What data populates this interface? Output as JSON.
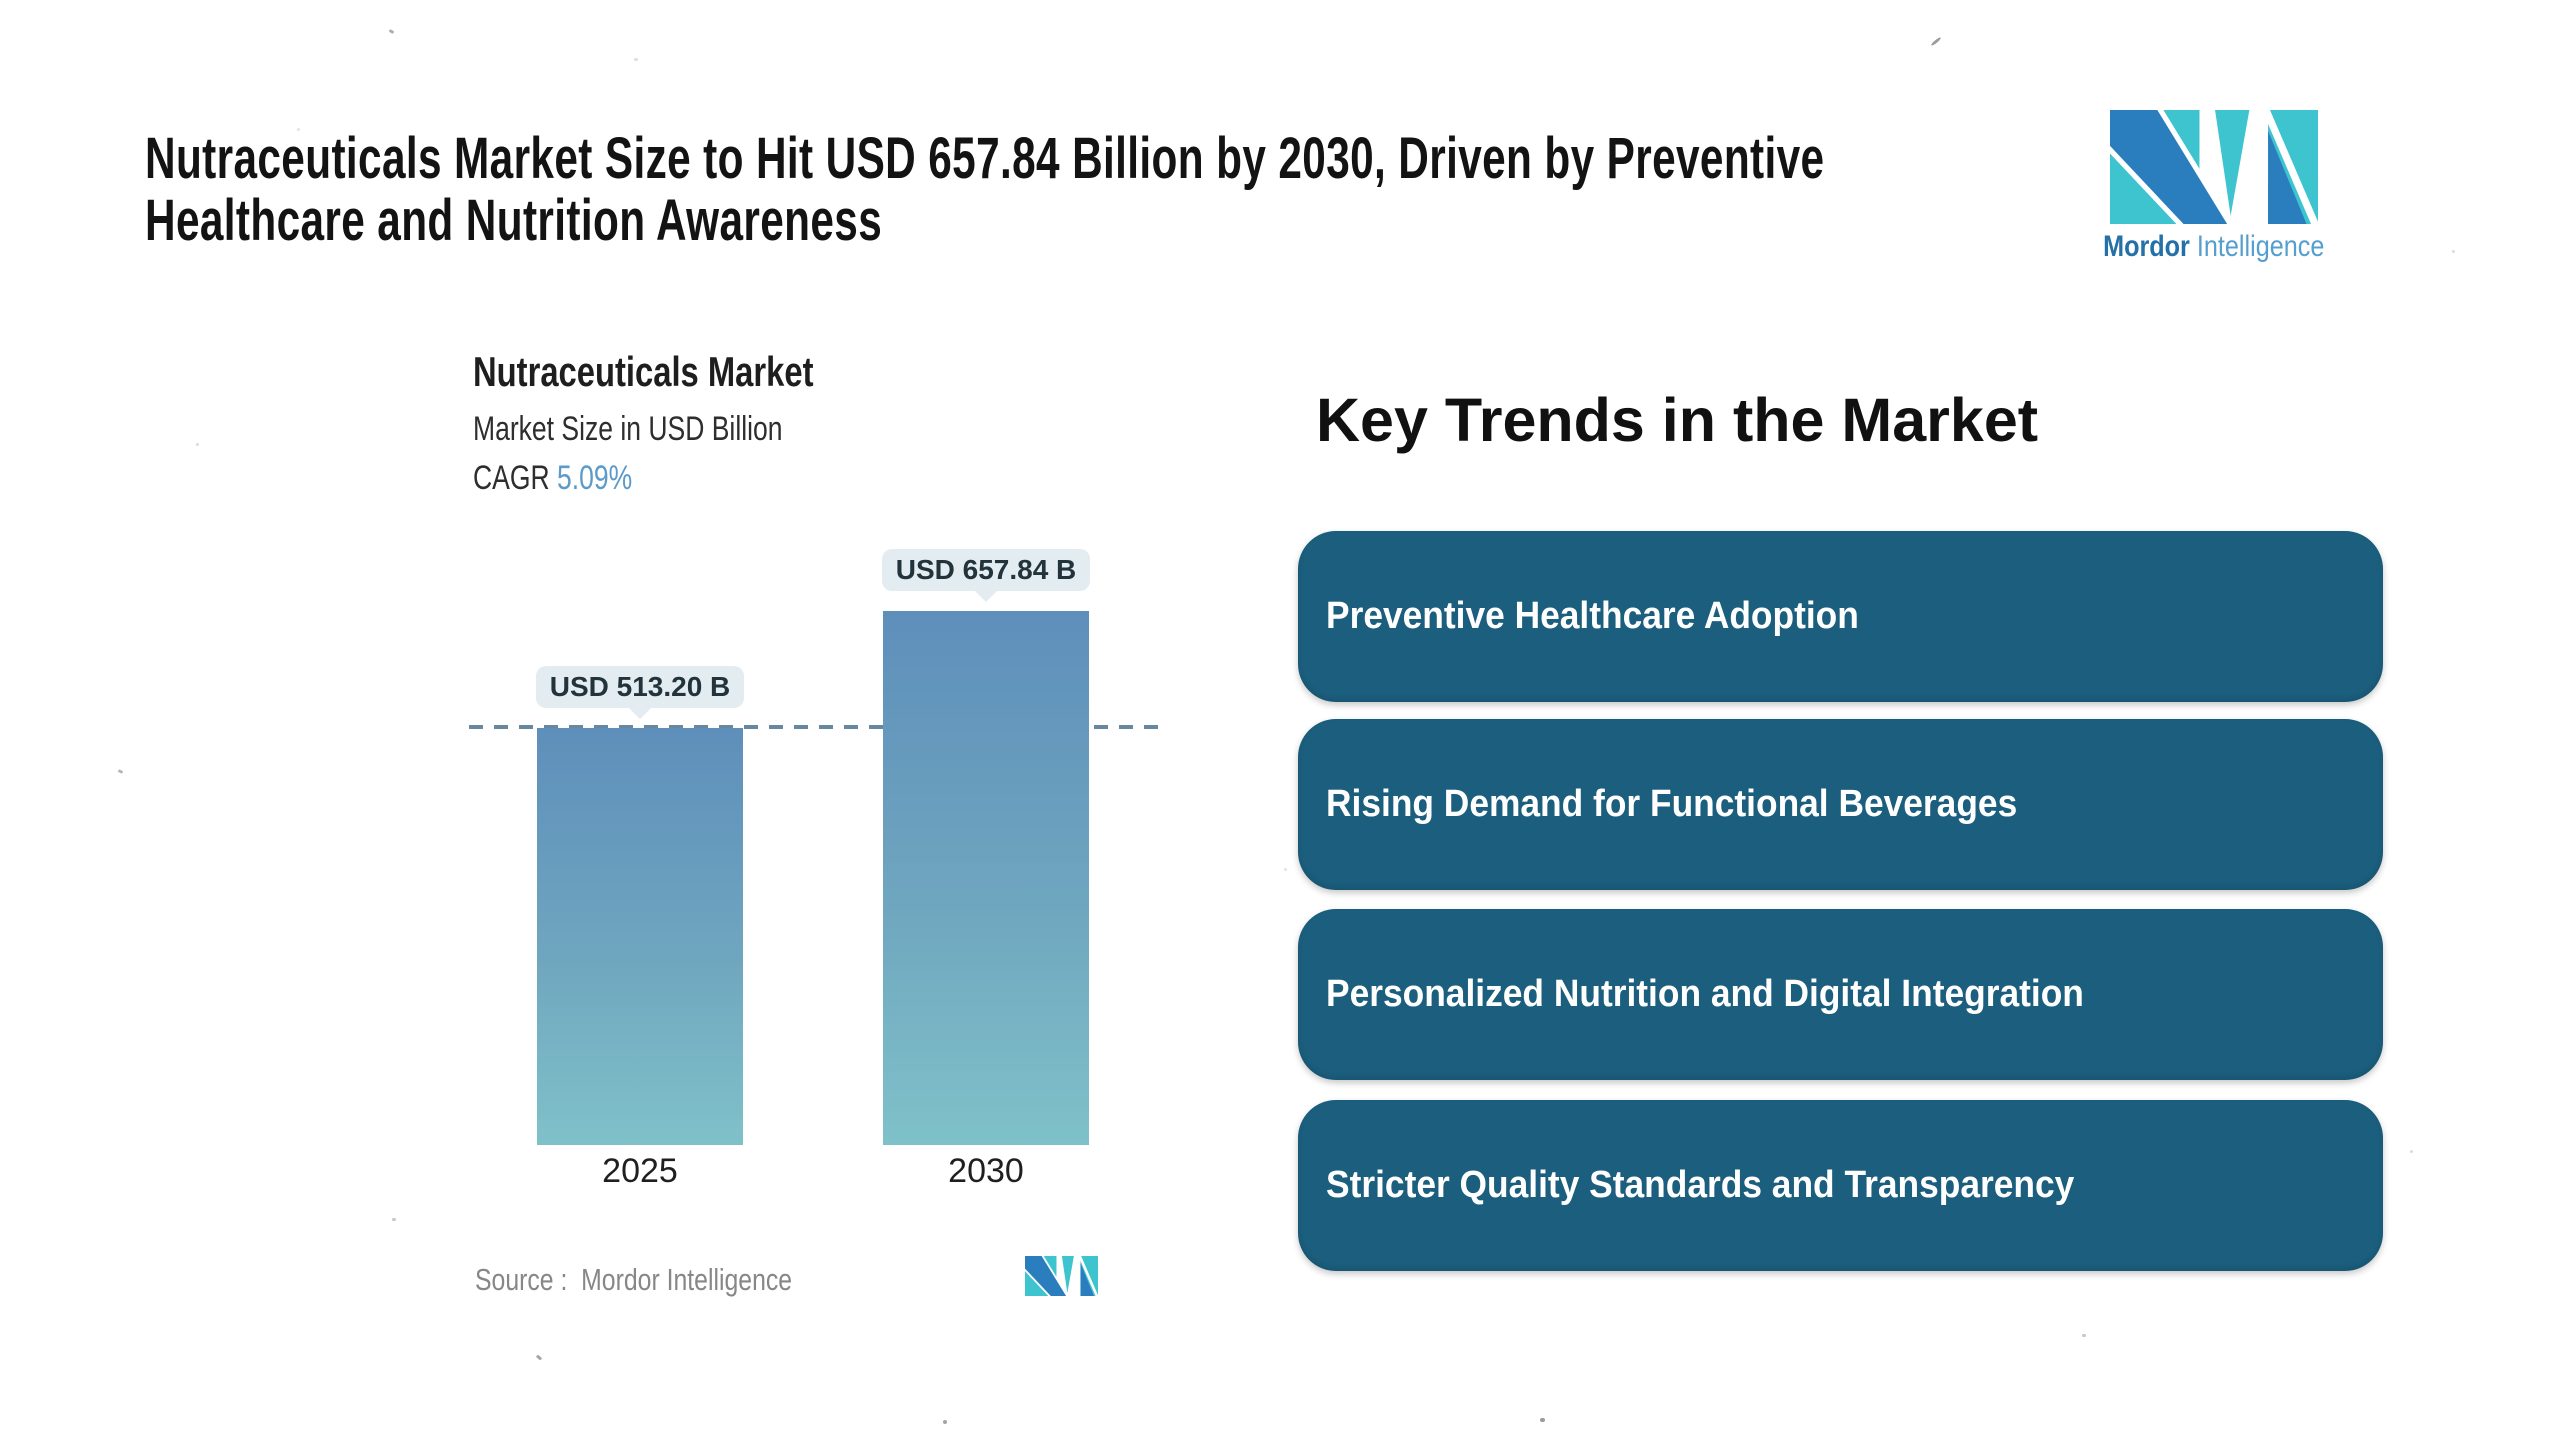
{
  "page": {
    "title_line1": "Nutraceuticals Market Size to Hit USD 657.84 Billion by 2030, Driven by Preventive",
    "title_line2": "Healthcare and Nutrition Awareness"
  },
  "brand": {
    "wordmark_bold": "Mordor",
    "wordmark_light": "Intelligence",
    "mark_teal": "#3EC4CF",
    "mark_blue": "#2B7EBE"
  },
  "chart": {
    "title": "Nutraceuticals Market",
    "subtitle": "Market Size in USD Billion",
    "cagr_label": "CAGR",
    "cagr_value": "5.09%",
    "source_label": "Source :",
    "source_value": "Mordor Intelligence"
  },
  "chart_data": {
    "type": "bar",
    "title": "Nutraceuticals Market",
    "subtitle": "Market Size in USD Billion",
    "unit": "USD Billion",
    "cagr": "5.09%",
    "categories": [
      "2025",
      "2030"
    ],
    "values": [
      513.2,
      657.84
    ],
    "value_labels": [
      "USD 513.20 B",
      "USD 657.84 B"
    ],
    "reference_line": {
      "value": 513.2,
      "style": "dashed"
    },
    "grid": false,
    "legend": false,
    "source": "Mordor Intelligence",
    "bar_gradient_top": "#5E8FBB",
    "bar_gradient_bottom": "#7FC1C9",
    "reference_line_color": "#68889F",
    "label_bubble_bg": "#E3ECF0"
  },
  "trends": {
    "heading": "Key Trends in the Market",
    "pill_bg": "#1B5E7D",
    "pill_text_color": "#FFFFFF",
    "items": [
      {
        "label": "Preventive Healthcare Adoption"
      },
      {
        "label": "Rising Demand for Functional Beverages"
      },
      {
        "label": "Personalized Nutrition and Digital Integration"
      },
      {
        "label": "Stricter Quality Standards and Transparency"
      }
    ]
  }
}
